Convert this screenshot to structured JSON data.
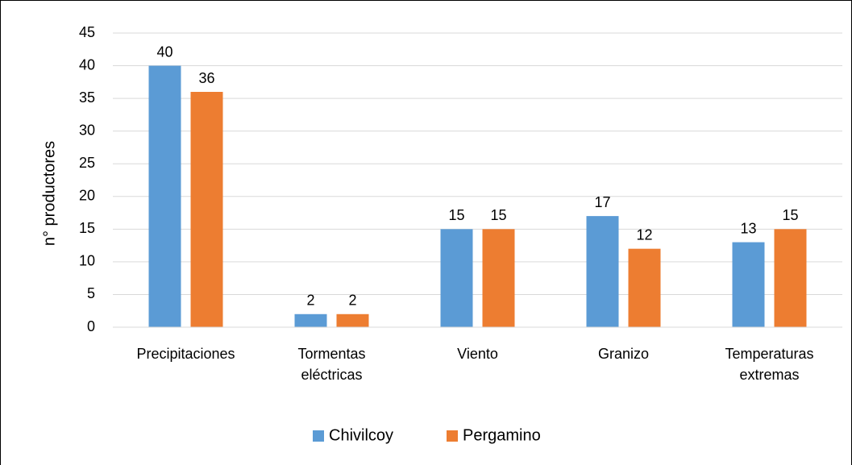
{
  "chart_data": {
    "type": "bar",
    "y_label": "n° productores",
    "categories": [
      "Precipitaciones",
      "Tormentas eléctricas",
      "Viento",
      "Granizo",
      "Temperaturas extremas"
    ],
    "series": [
      {
        "name": "Chivilcoy",
        "color": "#5b9bd5",
        "values": [
          40,
          2,
          15,
          17,
          13
        ]
      },
      {
        "name": "Pergamino",
        "color": "#ed7d31",
        "values": [
          36,
          2,
          15,
          12,
          15
        ]
      }
    ],
    "ylim": [
      0,
      45
    ],
    "yticks": [
      0,
      5,
      10,
      15,
      20,
      25,
      30,
      35,
      40,
      45
    ],
    "grid": true,
    "legend": "bottom"
  }
}
